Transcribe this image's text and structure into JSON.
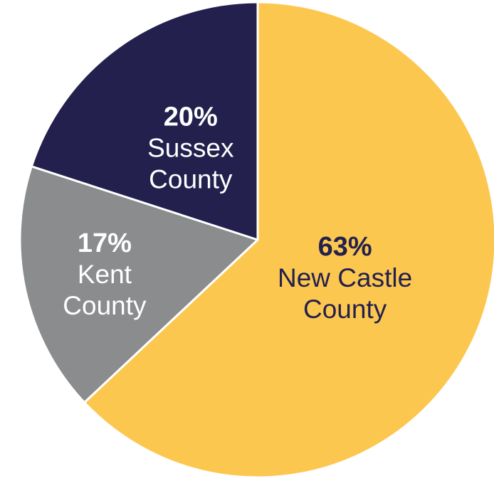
{
  "chart_data": {
    "type": "pie",
    "title": "",
    "start_angle_deg": 0,
    "direction": "clockwise",
    "slices": [
      {
        "pct_label": "63%",
        "name_lines": [
          "New Castle",
          "County"
        ],
        "value": 63,
        "color": "#FCC74F",
        "text_color": "#23204E"
      },
      {
        "pct_label": "17%",
        "name_lines": [
          "Kent",
          "County"
        ],
        "value": 17,
        "color": "#8A8C8E",
        "text_color": "#FFFFFF"
      },
      {
        "pct_label": "20%",
        "name_lines": [
          "Sussex",
          "County"
        ],
        "value": 20,
        "color": "#23204E",
        "text_color": "#FFFFFF"
      }
    ]
  }
}
